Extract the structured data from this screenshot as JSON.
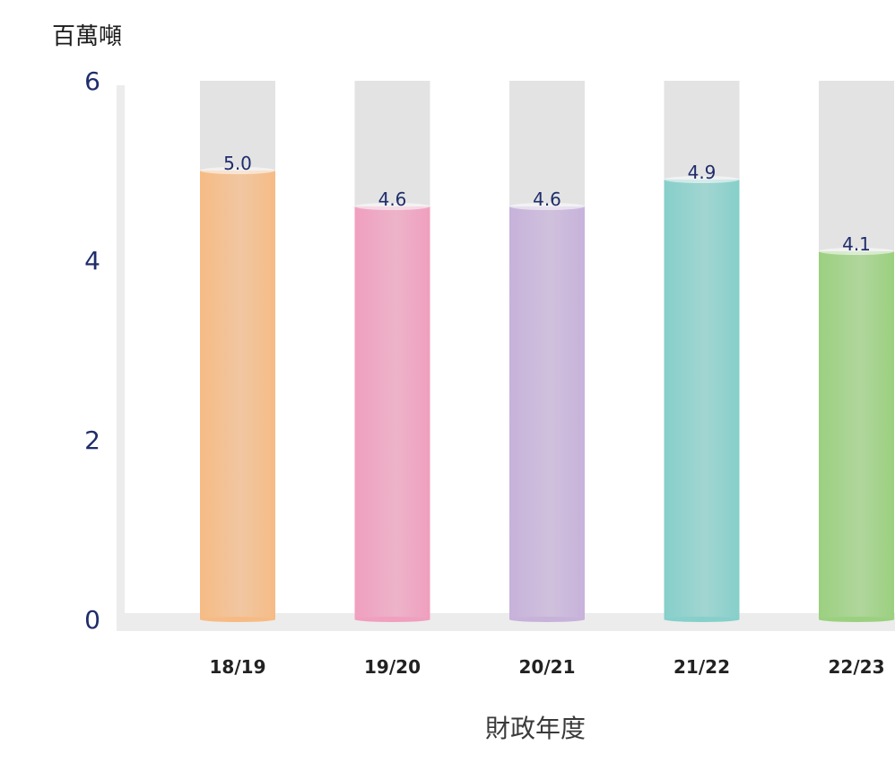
{
  "chart_data": {
    "type": "bar",
    "ylabel": "百萬噸",
    "xlabel": "財政年度",
    "ylim": [
      0,
      6
    ],
    "yticks": [
      0,
      2,
      4,
      6
    ],
    "categories": [
      "18/19",
      "19/20",
      "20/21",
      "21/22",
      "22/23"
    ],
    "values": [
      5.0,
      4.6,
      4.6,
      4.9,
      4.1
    ],
    "value_labels": [
      "5.0",
      "4.6",
      "4.6",
      "4.9",
      "4.1"
    ],
    "colors": [
      "#f6bb85",
      "#f09fbe",
      "#c7b2da",
      "#86cfca",
      "#9bd07f"
    ],
    "grid": false,
    "legend": "none"
  }
}
